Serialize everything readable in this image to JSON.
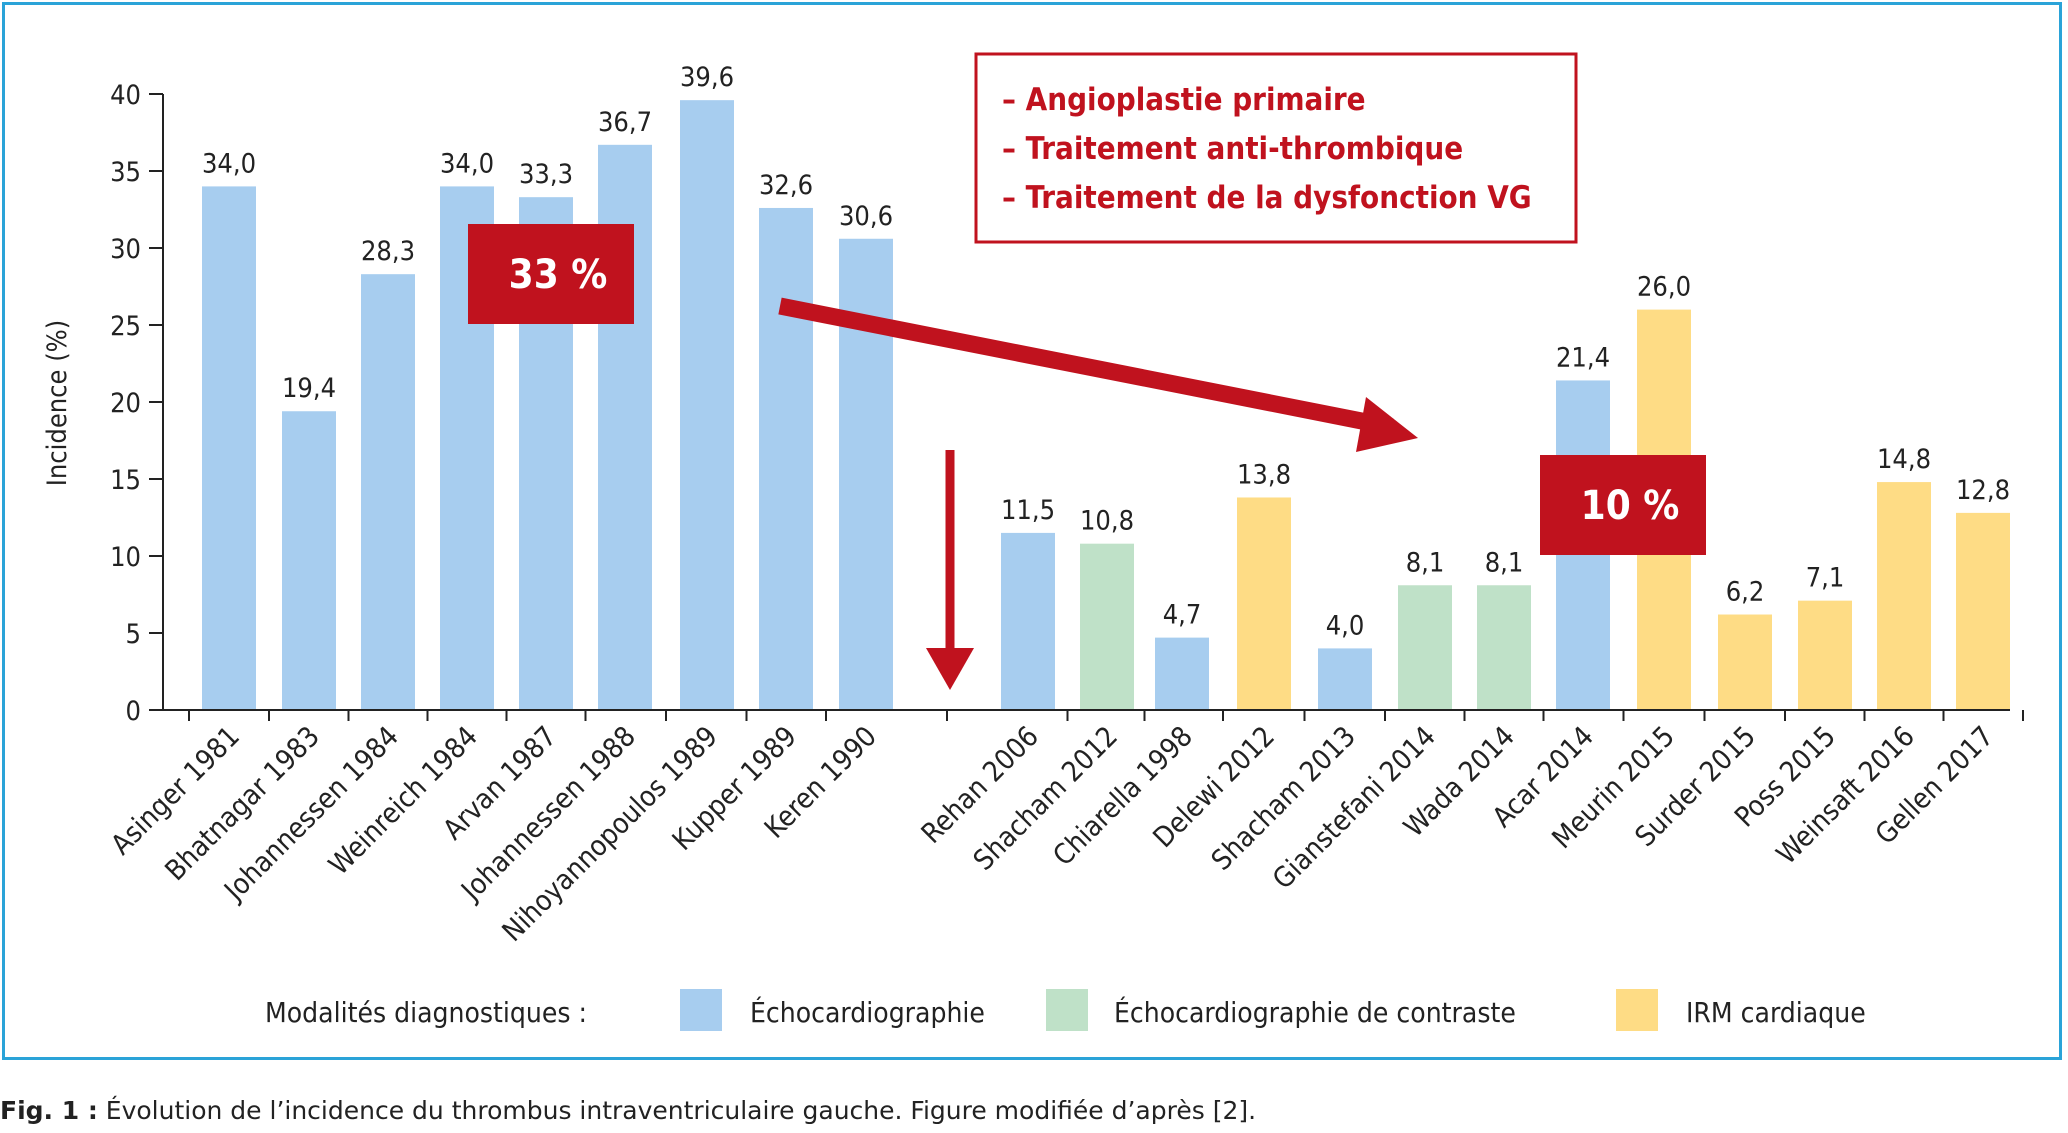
{
  "caption": {
    "label": "Fig. 1 :",
    "text": " Évolution de l’incidence du thrombus intraventriculaire gauche. Figure modifiée d’après [2]."
  },
  "chart_data": {
    "type": "bar",
    "ylabel": "Incidence (%)",
    "xlabel": "",
    "ylim": [
      0,
      40
    ],
    "yticks": [
      0,
      5,
      10,
      15,
      20,
      25,
      30,
      35,
      40
    ],
    "grid": false,
    "categories": [
      "Asinger 1981",
      "Bhatnagar 1983",
      "Johannessen 1984",
      "Weinreich 1984",
      "Arvan 1987",
      "Johannessen 1988",
      "Nihoyannopoulos 1989",
      "Kupper 1989",
      "Keren 1990",
      "Rehan 2006",
      "Shacham 2012",
      "Chiarella 1998",
      "Delewi 2012",
      "Shacham 2013",
      "Gianstefani 2014",
      "Wada 2014",
      "Acar 2014",
      "Meurin 2015",
      "Surder 2015",
      "Poss 2015",
      "Weinsaft 2016",
      "Gellen 2017"
    ],
    "values": [
      34.0,
      19.4,
      28.3,
      34.0,
      33.3,
      36.7,
      39.6,
      32.6,
      30.6,
      11.5,
      10.8,
      4.7,
      13.8,
      4.0,
      8.1,
      8.1,
      21.4,
      26.0,
      6.2,
      7.1,
      14.8,
      12.8
    ],
    "value_labels": [
      "34,0",
      "19,4",
      "28,3",
      "34,0",
      "33,3",
      "36,7",
      "39,6",
      "32,6",
      "30,6",
      "11,5",
      "10,8",
      "4,7",
      "13,8",
      "4,0",
      "8,1",
      "8,1",
      "21,4",
      "26,0",
      "6,2",
      "7,1",
      "14,8",
      "12,8"
    ],
    "modality": [
      "echo",
      "echo",
      "echo",
      "echo",
      "echo",
      "echo",
      "echo",
      "echo",
      "echo",
      "echo",
      "contrast",
      "echo",
      "irm",
      "echo",
      "contrast",
      "contrast",
      "echo",
      "irm",
      "irm",
      "irm",
      "irm",
      "irm"
    ],
    "colors": {
      "echo": "#a7cdef",
      "contrast": "#bfe1c8",
      "irm": "#fedc85",
      "accent": "#c0121e"
    },
    "legend": {
      "title": "Modalités diagnostiques :",
      "placement": "bottom",
      "entries": [
        {
          "key": "echo",
          "label": "Échocardiographie"
        },
        {
          "key": "contrast",
          "label": "Échocardiographie de contraste"
        },
        {
          "key": "irm",
          "label": "IRM cardiaque"
        }
      ]
    },
    "annotations": {
      "before_badge": "33 %",
      "after_badge": "10 %",
      "factors": [
        "– Angioplastie primaire",
        "– Traitement anti-thrombique",
        "– Traitement de la dysfonction VG"
      ]
    }
  }
}
